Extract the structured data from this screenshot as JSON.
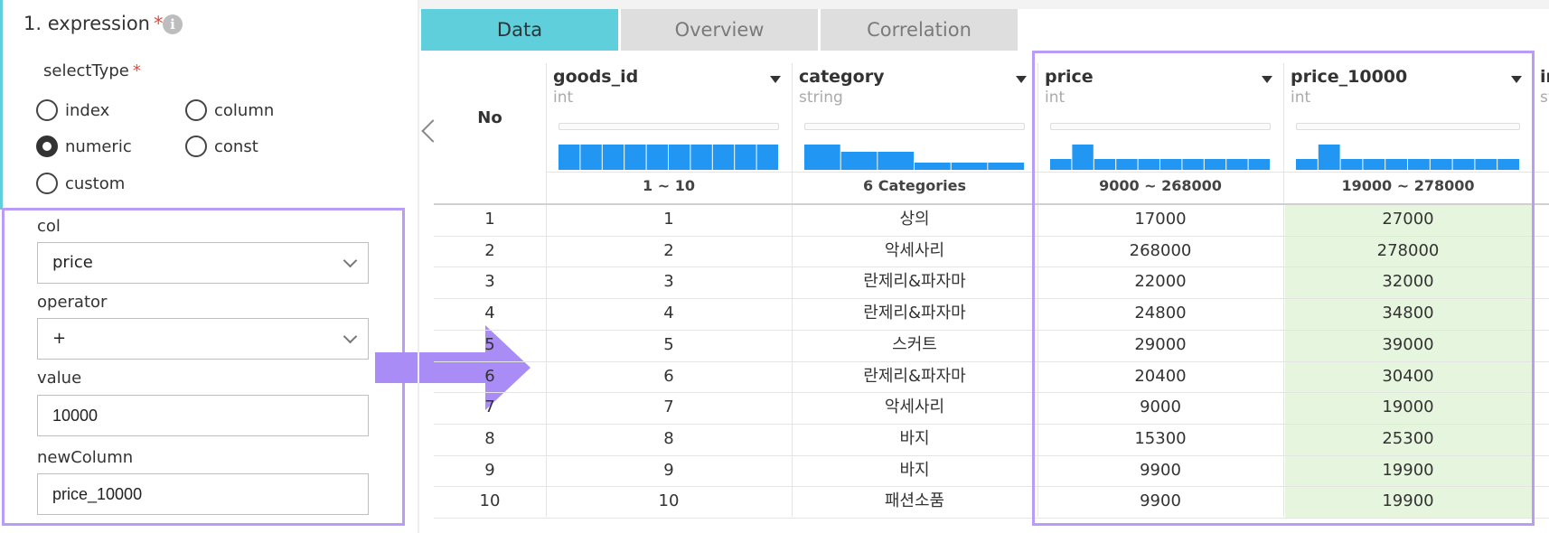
{
  "expression": {
    "title": "1. expression",
    "required_mark": "*",
    "info_icon": "i",
    "select_type_label": "selectType",
    "radio_options": [
      {
        "label": "index",
        "checked": false
      },
      {
        "label": "column",
        "checked": false
      },
      {
        "label": "numeric",
        "checked": true
      },
      {
        "label": "const",
        "checked": false
      },
      {
        "label": "custom",
        "checked": false
      }
    ],
    "col_label": "col",
    "col_value": "price",
    "operator_label": "operator",
    "operator_value": "+",
    "value_label": "value",
    "value_value": "10000",
    "new_column_label": "newColumn",
    "new_column_value": "price_10000"
  },
  "tabs": [
    "Data",
    "Overview",
    "Correlation"
  ],
  "table": {
    "no_header": "No",
    "columns": [
      {
        "name": "goods_id",
        "type": "int",
        "range": "1 ~ 10",
        "hist": [
          6,
          6,
          6,
          6,
          6,
          6,
          6,
          6,
          6,
          6
        ]
      },
      {
        "name": "category",
        "type": "string",
        "range": "6 Categories",
        "hist": [
          7,
          5,
          5,
          2,
          2,
          2
        ]
      },
      {
        "name": "price",
        "type": "int",
        "range": "9000 ~ 268000",
        "hist": [
          3,
          7,
          3,
          3,
          3,
          3,
          3,
          3,
          3,
          3
        ]
      },
      {
        "name": "price_10000",
        "type": "int",
        "range": "19000 ~ 278000",
        "hist": [
          3,
          7,
          3,
          3,
          3,
          3,
          3,
          3,
          3,
          3
        ]
      },
      {
        "name": "in",
        "type": "st"
      }
    ],
    "rows": [
      [
        "1",
        "1",
        "상의",
        "17000",
        "27000"
      ],
      [
        "2",
        "2",
        "악세사리",
        "268000",
        "278000"
      ],
      [
        "3",
        "3",
        "란제리&파자마",
        "22000",
        "32000"
      ],
      [
        "4",
        "4",
        "란제리&파자마",
        "24800",
        "34800"
      ],
      [
        "5",
        "5",
        "스커트",
        "29000",
        "39000"
      ],
      [
        "6",
        "6",
        "란제리&파자마",
        "20400",
        "30400"
      ],
      [
        "7",
        "7",
        "악세사리",
        "9000",
        "19000"
      ],
      [
        "8",
        "8",
        "바지",
        "15300",
        "25300"
      ],
      [
        "9",
        "9",
        "바지",
        "9900",
        "19900"
      ],
      [
        "10",
        "10",
        "패션소품",
        "9900",
        "19900"
      ]
    ]
  },
  "colors": {
    "accent": "#5ecfdb",
    "highlight": "#b99cf8",
    "hist_bar": "#2196f3",
    "new_column_bg": "#e6f5dd",
    "required": "#e8463a"
  }
}
